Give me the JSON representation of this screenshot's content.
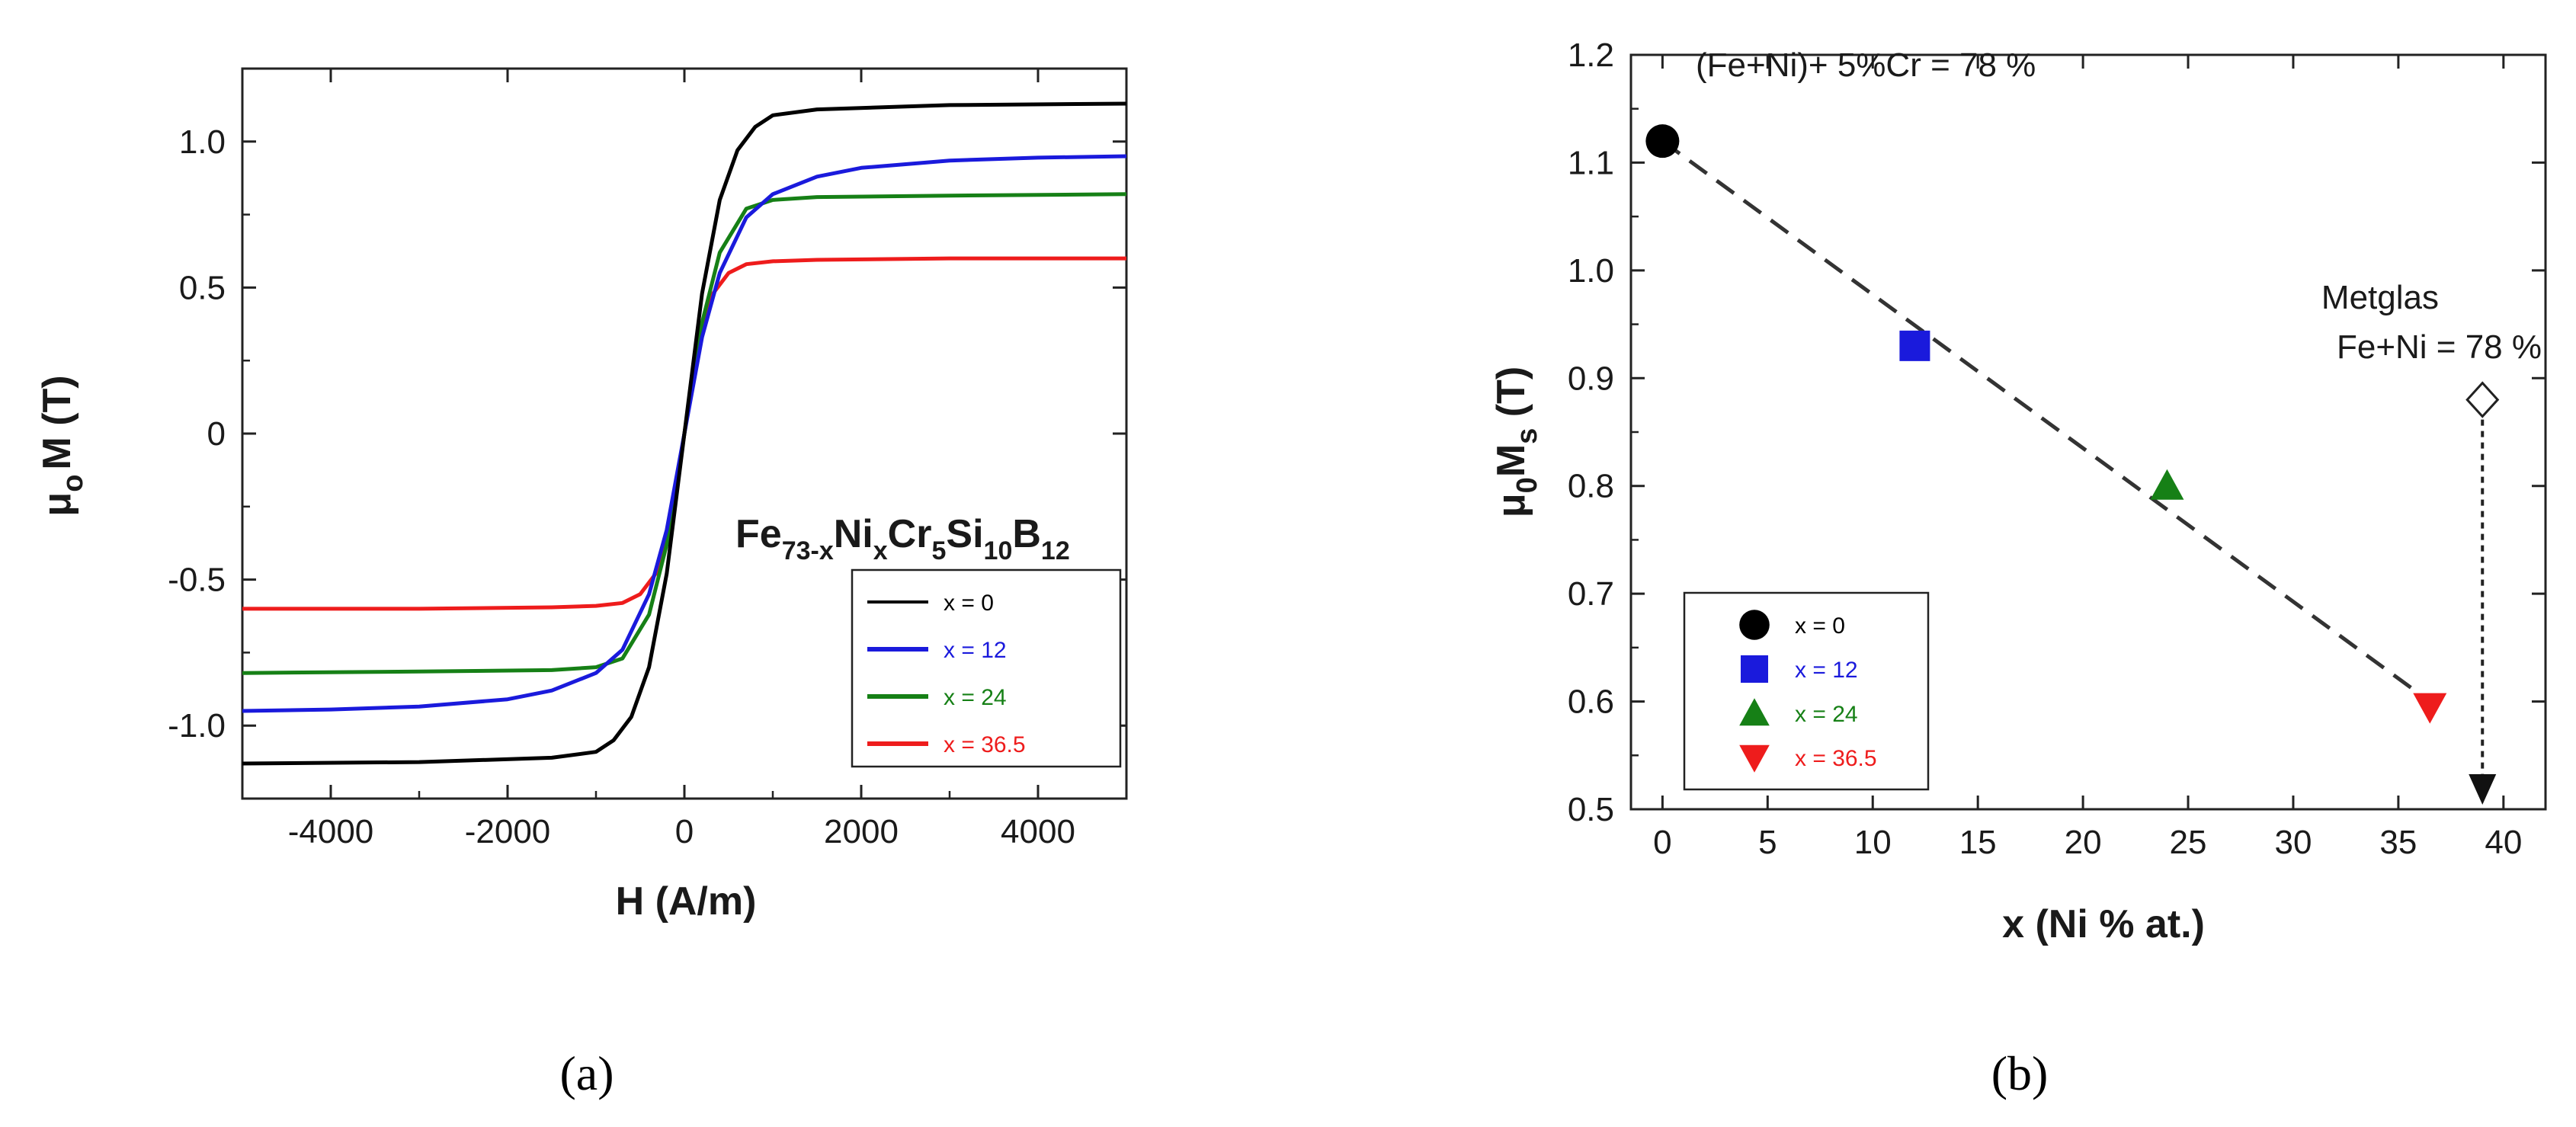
{
  "chart_data": [
    {
      "panel": "(a)",
      "type": "line",
      "xlabel": "H (A/m)",
      "ylabel": "μ",
      "ylabel_sub": "o",
      "ylabel_rest": "M (T)",
      "xlim": [
        -5000,
        5000
      ],
      "ylim": [
        -1.25,
        1.25
      ],
      "xticks": [
        -4000,
        -2000,
        0,
        2000,
        4000
      ],
      "xtick_labels": [
        "-4000",
        "-2000",
        "0",
        "2000",
        "4000"
      ],
      "yticks": [
        -1.0,
        -0.5,
        0,
        0.5,
        1.0
      ],
      "ytick_labels": [
        "-1.0",
        "-0.5",
        "0",
        "0.5",
        "1.0"
      ],
      "formula": [
        "Fe",
        "73-x",
        "Ni",
        "x",
        "Cr",
        "5",
        "Si",
        "10",
        "B",
        "12"
      ],
      "series": [
        {
          "name": "x = 0",
          "color": "#000000",
          "x": [
            -5000,
            -3000,
            -1500,
            -1000,
            -800,
            -600,
            -400,
            -200,
            0,
            200,
            400,
            600,
            800,
            1000,
            1500,
            3000,
            5000
          ],
          "y": [
            -1.13,
            -1.125,
            -1.11,
            -1.09,
            -1.05,
            -0.97,
            -0.8,
            -0.48,
            0.0,
            0.48,
            0.8,
            0.97,
            1.05,
            1.09,
            1.11,
            1.125,
            1.13
          ]
        },
        {
          "name": "x = 12",
          "color": "#1a1adc",
          "x": [
            -5000,
            -4000,
            -3000,
            -2000,
            -1500,
            -1000,
            -700,
            -400,
            -200,
            0,
            200,
            400,
            700,
            1000,
            1500,
            2000,
            3000,
            4000,
            5000
          ],
          "y": [
            -0.95,
            -0.945,
            -0.935,
            -0.91,
            -0.88,
            -0.82,
            -0.74,
            -0.55,
            -0.33,
            0.0,
            0.33,
            0.55,
            0.74,
            0.82,
            0.88,
            0.91,
            0.935,
            0.945,
            0.95
          ]
        },
        {
          "name": "x = 24",
          "color": "#168016",
          "x": [
            -5000,
            -3000,
            -1500,
            -1000,
            -700,
            -400,
            -200,
            0,
            200,
            400,
            700,
            1000,
            1500,
            3000,
            5000
          ],
          "y": [
            -0.82,
            -0.815,
            -0.81,
            -0.8,
            -0.77,
            -0.62,
            -0.38,
            0.0,
            0.38,
            0.62,
            0.77,
            0.8,
            0.81,
            0.815,
            0.82
          ]
        },
        {
          "name": "x = 36.5",
          "color": "#ee1c1c",
          "x": [
            -5000,
            -3000,
            -1500,
            -1000,
            -700,
            -500,
            -300,
            -150,
            0,
            150,
            300,
            500,
            700,
            1000,
            1500,
            3000,
            5000
          ],
          "y": [
            -0.6,
            -0.6,
            -0.595,
            -0.59,
            -0.58,
            -0.55,
            -0.47,
            -0.3,
            0.0,
            0.3,
            0.47,
            0.55,
            0.58,
            0.59,
            0.595,
            0.6,
            0.6
          ]
        }
      ]
    },
    {
      "panel": "(b)",
      "type": "scatter",
      "xlabel": "x (Ni % at.)",
      "ylabel": "μ",
      "ylabel_sub": "0",
      "ylabel_mid": "M",
      "ylabel_sub2": "s",
      "ylabel_rest": " (T)",
      "xlim": [
        -1.5,
        42
      ],
      "ylim": [
        0.5,
        1.2
      ],
      "xticks": [
        0,
        5,
        10,
        15,
        20,
        25,
        30,
        35,
        40
      ],
      "xtick_labels": [
        "0",
        "5",
        "10",
        "15",
        "20",
        "25",
        "30",
        "35",
        "40"
      ],
      "yticks": [
        0.5,
        0.6,
        0.7,
        0.8,
        0.9,
        1.0,
        1.1,
        1.2
      ],
      "ytick_labels": [
        "0.5",
        "0.6",
        "0.7",
        "0.8",
        "0.9",
        "1.0",
        "1.1",
        "1.2"
      ],
      "points": [
        {
          "name": "x = 0",
          "x": 0,
          "y": 1.12,
          "marker": "circle",
          "color": "#000000"
        },
        {
          "name": "x = 12",
          "x": 12,
          "y": 0.93,
          "marker": "square",
          "color": "#1a1adc"
        },
        {
          "name": "x = 24",
          "x": 24,
          "y": 0.8,
          "marker": "triangle-up",
          "color": "#168016"
        },
        {
          "name": "x = 36.5",
          "x": 36.5,
          "y": 0.595,
          "marker": "triangle-down",
          "color": "#ee1c1c"
        }
      ],
      "fit_line": {
        "x": [
          0,
          36.5
        ],
        "y": [
          1.12,
          0.6
        ]
      },
      "metglas": {
        "x": 39,
        "y": 0.88,
        "arrow_to_y": 0.5,
        "marker": "diamond-open"
      },
      "annotations": {
        "top": "(Fe+Ni)+ 5%Cr = 78 %",
        "metglas_line1": "Metglas",
        "metglas_line2": "Fe+Ni = 78 %"
      }
    }
  ]
}
